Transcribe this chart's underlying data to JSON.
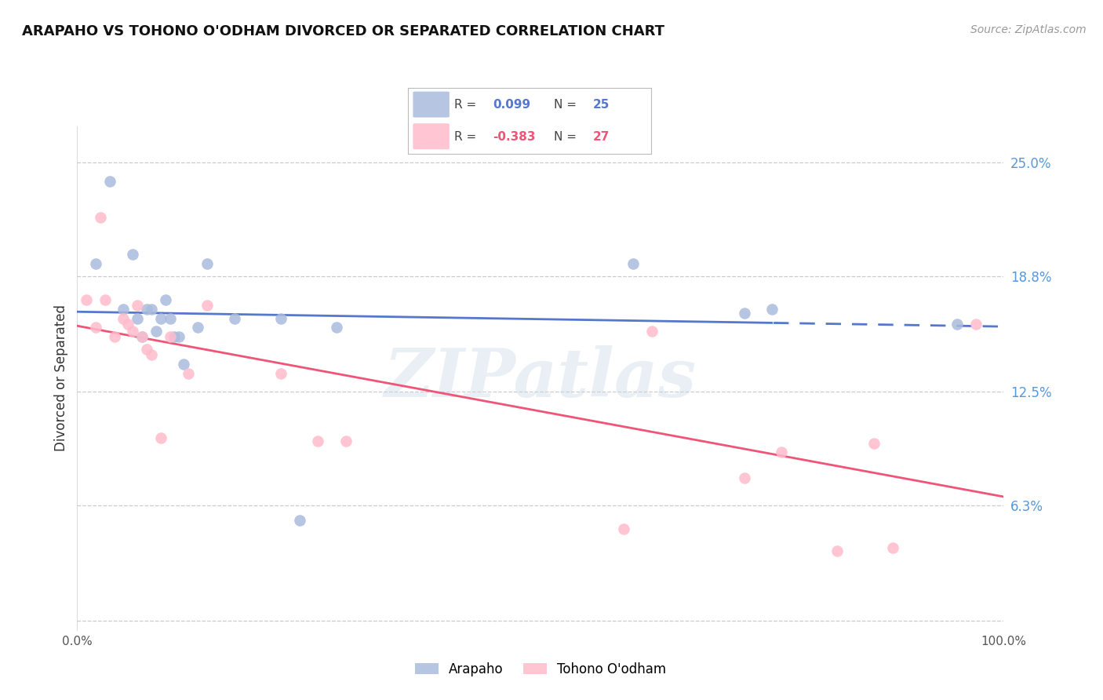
{
  "title": "ARAPAHO VS TOHONO O'ODHAM DIVORCED OR SEPARATED CORRELATION CHART",
  "source": "Source: ZipAtlas.com",
  "ylabel": "Divorced or Separated",
  "y_ticks": [
    0.0,
    0.063,
    0.125,
    0.188,
    0.25
  ],
  "y_tick_labels": [
    "",
    "6.3%",
    "12.5%",
    "18.8%",
    "25.0%"
  ],
  "xlim": [
    0.0,
    1.0
  ],
  "ylim": [
    -0.005,
    0.27
  ],
  "legend_blue_r": "0.099",
  "legend_blue_n": "25",
  "legend_pink_r": "-0.383",
  "legend_pink_n": "27",
  "watermark": "ZIPatlas",
  "arapaho_x": [
    0.02,
    0.035,
    0.05,
    0.06,
    0.065,
    0.07,
    0.075,
    0.08,
    0.085,
    0.09,
    0.095,
    0.1,
    0.105,
    0.11,
    0.115,
    0.13,
    0.14,
    0.17,
    0.22,
    0.24,
    0.28,
    0.6,
    0.72,
    0.75,
    0.95
  ],
  "arapaho_y": [
    0.195,
    0.24,
    0.17,
    0.2,
    0.165,
    0.155,
    0.17,
    0.17,
    0.158,
    0.165,
    0.175,
    0.165,
    0.155,
    0.155,
    0.14,
    0.16,
    0.195,
    0.165,
    0.165,
    0.055,
    0.16,
    0.195,
    0.168,
    0.17,
    0.162
  ],
  "tohono_x": [
    0.01,
    0.02,
    0.025,
    0.03,
    0.04,
    0.05,
    0.055,
    0.06,
    0.065,
    0.07,
    0.075,
    0.08,
    0.09,
    0.1,
    0.12,
    0.14,
    0.22,
    0.26,
    0.29,
    0.59,
    0.62,
    0.72,
    0.76,
    0.82,
    0.86,
    0.88,
    0.97
  ],
  "tohono_y": [
    0.175,
    0.16,
    0.22,
    0.175,
    0.155,
    0.165,
    0.162,
    0.158,
    0.172,
    0.155,
    0.148,
    0.145,
    0.1,
    0.155,
    0.135,
    0.172,
    0.135,
    0.098,
    0.098,
    0.05,
    0.158,
    0.078,
    0.092,
    0.038,
    0.097,
    0.04,
    0.162
  ],
  "blue_color": "#aabbdd",
  "pink_color": "#ffbbcc",
  "blue_line_color": "#5577cc",
  "pink_line_color": "#ee5577",
  "bg_color": "#ffffff",
  "grid_color": "#cccccc",
  "right_label_color": "#5599dd",
  "legend_border_color": "#bbbbbb",
  "blue_legend_fill": "#aabbdd",
  "pink_legend_fill": "#ffbbcc"
}
